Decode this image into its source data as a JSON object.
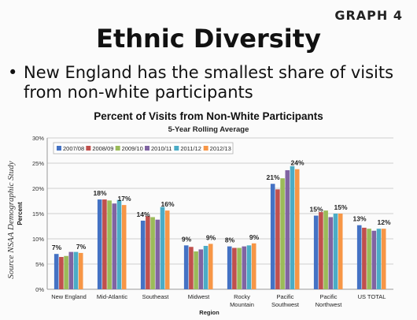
{
  "slide": {
    "badge": "GRAPH 4",
    "title": "Ethnic Diversity",
    "bullet_marker": "•",
    "bullet": "New England has the smallest share of visits from non-white participants",
    "source": "Source NSAA Demographic Study"
  },
  "chart_data": {
    "type": "bar",
    "title": "Percent of Visits from Non-White Participants",
    "subtitle": "5-Year Rolling Average",
    "xlabel": "Region",
    "ylabel": "Percent",
    "ylim": [
      0,
      30
    ],
    "yticks": [
      "0%",
      "5%",
      "10%",
      "15%",
      "20%",
      "25%",
      "30%"
    ],
    "grid": true,
    "legend_position": "top-left",
    "categories": [
      "New England",
      "Mid-Atlantic",
      "Southeast",
      "Midwest",
      "Rocky Mountain",
      "Pacific Southwest",
      "Pacific Northwest",
      "US TOTAL"
    ],
    "category_labels": [
      [
        "New England"
      ],
      [
        "Mid-Atlantic"
      ],
      [
        "Southeast"
      ],
      [
        "Midwest"
      ],
      [
        "Rocky",
        "Mountain"
      ],
      [
        "Pacific",
        "Southwest"
      ],
      [
        "Pacific",
        "Northwest"
      ],
      [
        "US TOTAL"
      ]
    ],
    "series": [
      {
        "name": "2007/08",
        "color": "#4472C4",
        "values": [
          7.0,
          17.8,
          13.6,
          8.7,
          8.5,
          20.9,
          14.6,
          12.7
        ]
      },
      {
        "name": "2008/09",
        "color": "#C0504D",
        "values": [
          6.4,
          17.8,
          14.5,
          8.4,
          8.2,
          19.8,
          15.3,
          12.2
        ]
      },
      {
        "name": "2009/10",
        "color": "#9BBB59",
        "values": [
          6.6,
          17.6,
          14.3,
          7.5,
          8.2,
          22.0,
          15.6,
          12.0
        ]
      },
      {
        "name": "2010/11",
        "color": "#8064A2",
        "values": [
          7.4,
          17.0,
          13.8,
          7.9,
          8.5,
          23.6,
          14.3,
          11.6
        ]
      },
      {
        "name": "2011/12",
        "color": "#4BACC6",
        "values": [
          7.4,
          17.7,
          16.3,
          8.6,
          8.7,
          24.4,
          15.0,
          12.0
        ]
      },
      {
        "name": "2012/13",
        "color": "#F79646",
        "values": [
          7.2,
          16.7,
          15.6,
          9.0,
          9.1,
          23.8,
          15.0,
          12.0
        ]
      }
    ],
    "data_labels": [
      {
        "category": 0,
        "series": 0,
        "text": "7%"
      },
      {
        "category": 0,
        "series": 5,
        "text": "7%"
      },
      {
        "category": 1,
        "series": 0,
        "text": "18%"
      },
      {
        "category": 1,
        "series": 5,
        "text": "17%"
      },
      {
        "category": 2,
        "series": 0,
        "text": "14%"
      },
      {
        "category": 2,
        "series": 5,
        "text": "16%"
      },
      {
        "category": 3,
        "series": 0,
        "text": "9%"
      },
      {
        "category": 3,
        "series": 5,
        "text": "9%"
      },
      {
        "category": 4,
        "series": 0,
        "text": "8%"
      },
      {
        "category": 4,
        "series": 5,
        "text": "9%"
      },
      {
        "category": 5,
        "series": 0,
        "text": "21%"
      },
      {
        "category": 5,
        "series": 5,
        "text": "24%"
      },
      {
        "category": 6,
        "series": 0,
        "text": "15%"
      },
      {
        "category": 6,
        "series": 5,
        "text": "15%"
      },
      {
        "category": 7,
        "series": 0,
        "text": "13%"
      },
      {
        "category": 7,
        "series": 5,
        "text": "12%"
      }
    ]
  }
}
